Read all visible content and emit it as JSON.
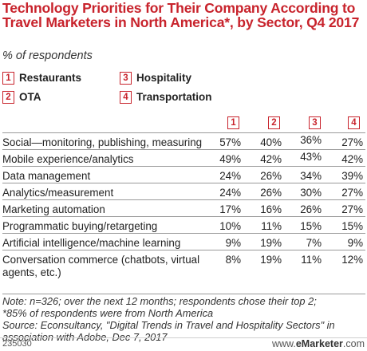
{
  "title": "Technology Priorities for Their Company According to Travel Marketers in North America*, by Sector, Q4 2017",
  "subtitle": "% of respondents",
  "legend": [
    {
      "num": "1",
      "label": "Restaurants"
    },
    {
      "num": "2",
      "label": "OTA"
    },
    {
      "num": "3",
      "label": "Hospitality"
    },
    {
      "num": "4",
      "label": "Transportation"
    }
  ],
  "chart_data": {
    "type": "table",
    "columns": [
      "1",
      "2",
      "3",
      "4"
    ],
    "series_names": [
      "Restaurants",
      "OTA",
      "Hospitality",
      "Transportation"
    ],
    "rows": [
      {
        "label": "Social—monitoring, publishing, measuring",
        "values": [
          "57%",
          "40%",
          "36%",
          "27%"
        ]
      },
      {
        "label": "Mobile experience/analytics",
        "values": [
          "49%",
          "42%",
          "43%",
          "42%"
        ]
      },
      {
        "label": "Data management",
        "values": [
          "24%",
          "26%",
          "34%",
          "39%"
        ]
      },
      {
        "label": "Analytics/measurement",
        "values": [
          "24%",
          "26%",
          "30%",
          "27%"
        ]
      },
      {
        "label": "Marketing automation",
        "values": [
          "17%",
          "16%",
          "26%",
          "27%"
        ]
      },
      {
        "label": "Programmatic buying/retargeting",
        "values": [
          "10%",
          "11%",
          "15%",
          "15%"
        ]
      },
      {
        "label": "Artificial intelligence/machine learning",
        "values": [
          "9%",
          "19%",
          "7%",
          "9%"
        ]
      },
      {
        "label": "Conversation commerce (chatbots, virtual agents, etc.)",
        "values": [
          "8%",
          "19%",
          "11%",
          "12%"
        ]
      }
    ]
  },
  "notes": {
    "line1": "Note: n=326; over the next 12 months; respondents chose their top 2;",
    "line2": "*85% of respondents were from North America",
    "line3": "Source: Econsultancy, \"Digital Trends in Travel and Hospitality Sectors\" in",
    "line4": "association with Adobe, Dec 7, 2017"
  },
  "footer": {
    "id": "235030",
    "brand_prefix": "www.",
    "brand_name": "eMarketer",
    "brand_suffix": ".com"
  },
  "colors": {
    "accent": "#c8232c",
    "rule": "#9a9a9a"
  }
}
